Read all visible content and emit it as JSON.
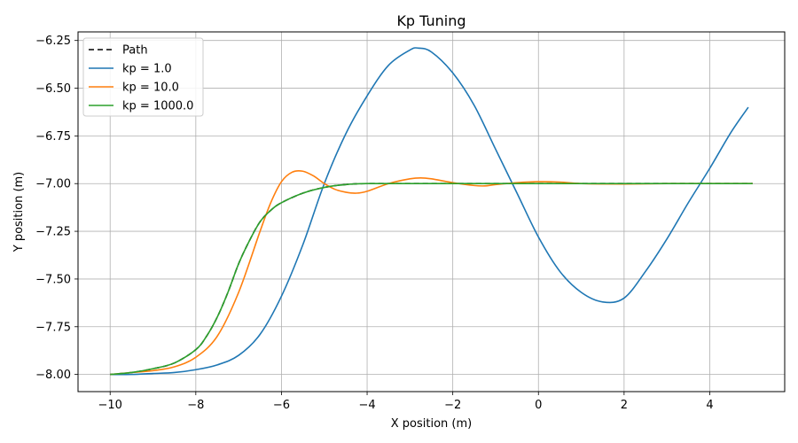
{
  "chart_data": {
    "type": "line",
    "title": "Kp Tuning",
    "xlabel": "X position (m)",
    "ylabel": "Y position (m)",
    "xlim": [
      -10.75,
      5.75
    ],
    "ylim": [
      -8.09,
      -6.205
    ],
    "xticks": [
      -10,
      -8,
      -6,
      -4,
      -2,
      0,
      2,
      4
    ],
    "xtick_labels": [
      "−10",
      "−8",
      "−6",
      "−4",
      "−2",
      "0",
      "2",
      "4"
    ],
    "yticks": [
      -8.0,
      -7.75,
      -7.5,
      -7.25,
      -7.0,
      -6.75,
      -6.5,
      -6.25
    ],
    "ytick_labels": [
      "−8.00",
      "−7.75",
      "−7.50",
      "−7.25",
      "−7.00",
      "−6.75",
      "−6.50",
      "−6.25"
    ],
    "grid": true,
    "legend_position": "top-left",
    "series": [
      {
        "name": "Path",
        "color": "#000000",
        "dashed": true,
        "x": [
          -10,
          -9.5,
          -9,
          -8.5,
          -8,
          -7.75,
          -7.5,
          -7.25,
          -7,
          -6.75,
          -6.5,
          -6.25,
          -6,
          -5.5,
          -5,
          -4.5,
          -4,
          -3,
          -2,
          -1,
          0,
          1,
          2,
          3,
          4,
          5
        ],
        "y": [
          -8.0,
          -7.99,
          -7.97,
          -7.94,
          -7.87,
          -7.8,
          -7.7,
          -7.57,
          -7.42,
          -7.3,
          -7.2,
          -7.14,
          -7.1,
          -7.05,
          -7.02,
          -7.005,
          -7.0,
          -7.0,
          -7.0,
          -7.0,
          -7.0,
          -7.0,
          -7.0,
          -7.0,
          -7.0,
          -7.0
        ]
      },
      {
        "name": "kp = 1.0",
        "color": "#1f77b4",
        "x": [
          -10,
          -9.5,
          -9,
          -8.5,
          -8,
          -7.5,
          -7,
          -6.5,
          -6,
          -5.5,
          -5,
          -4.5,
          -4,
          -3.5,
          -3,
          -2.8,
          -2.5,
          -2,
          -1.5,
          -1,
          -0.5,
          0,
          0.5,
          1,
          1.5,
          2,
          2.5,
          3,
          3.5,
          4,
          4.5,
          4.9
        ],
        "y": [
          -8.0,
          -8.0,
          -7.995,
          -7.99,
          -7.975,
          -7.95,
          -7.9,
          -7.79,
          -7.59,
          -7.32,
          -7.0,
          -6.74,
          -6.54,
          -6.38,
          -6.3,
          -6.29,
          -6.31,
          -6.42,
          -6.59,
          -6.82,
          -7.05,
          -7.28,
          -7.46,
          -7.57,
          -7.62,
          -7.6,
          -7.46,
          -7.29,
          -7.1,
          -6.92,
          -6.73,
          -6.6
        ]
      },
      {
        "name": "kp = 10.0",
        "color": "#ff7f0e",
        "x": [
          -10,
          -9.5,
          -9,
          -8.5,
          -8,
          -7.5,
          -7,
          -6.5,
          -6.25,
          -6,
          -5.75,
          -5.5,
          -5.25,
          -5,
          -4.75,
          -4.5,
          -4.25,
          -4,
          -3.5,
          -3,
          -2.75,
          -2.5,
          -2,
          -1.5,
          -1.25,
          -1,
          -0.5,
          0,
          0.5,
          1,
          2,
          3,
          4,
          5
        ],
        "y": [
          -8.0,
          -7.99,
          -7.98,
          -7.96,
          -7.91,
          -7.8,
          -7.57,
          -7.25,
          -7.1,
          -6.99,
          -6.94,
          -6.935,
          -6.96,
          -7.0,
          -7.03,
          -7.045,
          -7.05,
          -7.04,
          -7.0,
          -6.975,
          -6.97,
          -6.975,
          -6.995,
          -7.01,
          -7.012,
          -7.005,
          -6.995,
          -6.99,
          -6.992,
          -7.0,
          -7.002,
          -7.0,
          -7.0,
          -7.0
        ]
      },
      {
        "name": "kp = 1000.0",
        "color": "#2ca02c",
        "x": [
          -10,
          -9.5,
          -9,
          -8.5,
          -8,
          -7.75,
          -7.5,
          -7.25,
          -7,
          -6.75,
          -6.5,
          -6.25,
          -6,
          -5.5,
          -5,
          -4.5,
          -4,
          -3,
          -2,
          -1,
          0,
          1,
          2,
          3,
          4,
          5
        ],
        "y": [
          -8.0,
          -7.99,
          -7.97,
          -7.94,
          -7.87,
          -7.8,
          -7.7,
          -7.57,
          -7.42,
          -7.3,
          -7.2,
          -7.14,
          -7.1,
          -7.05,
          -7.02,
          -7.005,
          -7.0,
          -7.0,
          -7.0,
          -7.0,
          -7.0,
          -7.0,
          -7.0,
          -7.0,
          -7.0,
          -7.0
        ]
      }
    ]
  }
}
